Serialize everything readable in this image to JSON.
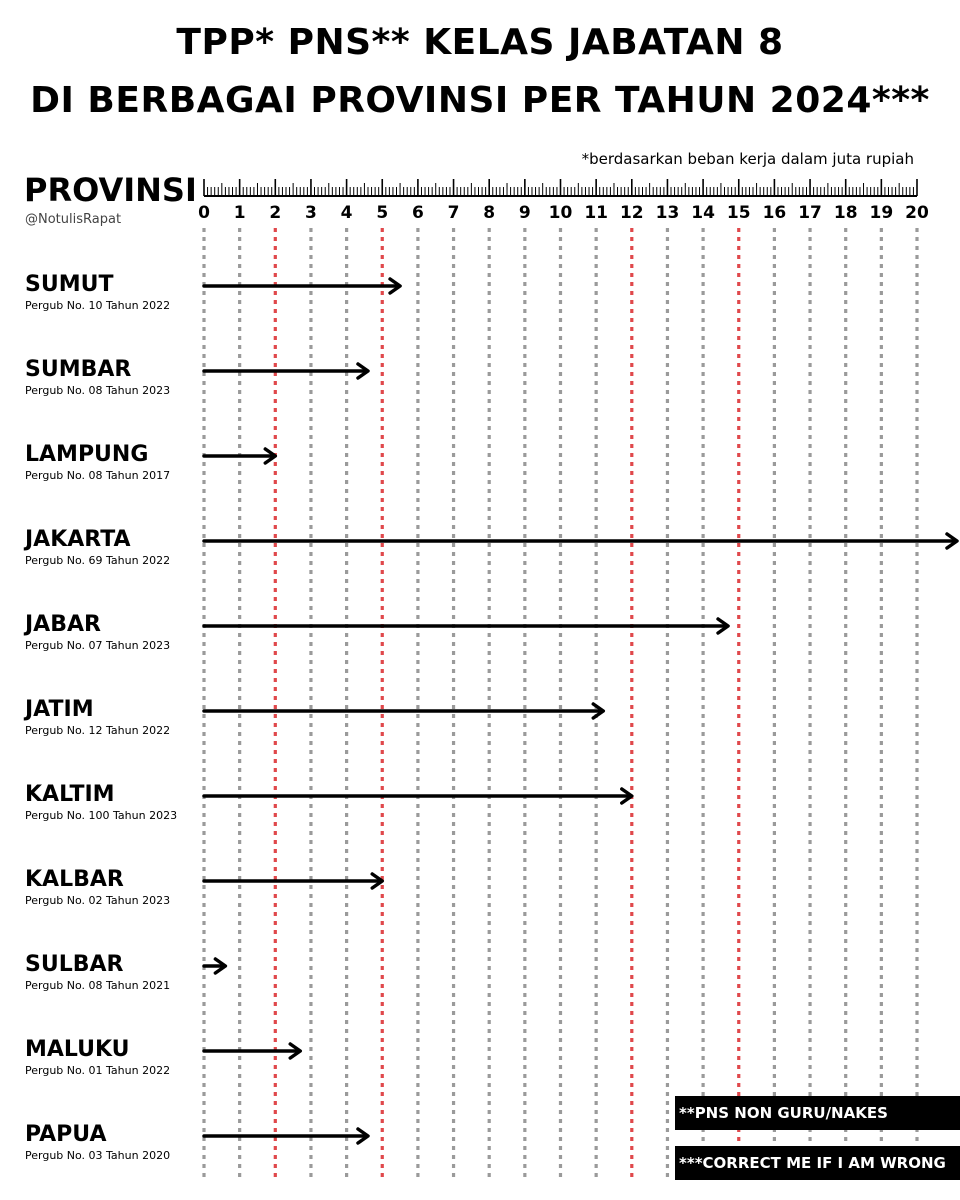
{
  "header": {
    "title_line1": "TPP* PNS** KELAS JABATAN 8",
    "title_line2": "DI BERBAGAI PROVINSI PER TAHUN 2024***",
    "note": "*berdasarkan beban kerja dalam juta rupiah",
    "handle": "@NotulisRapat"
  },
  "footnotes": {
    "note1": "**PNS NON GURU/NAKES",
    "note2": "***CORRECT ME IF I AM WRONG"
  },
  "colors": {
    "grid": "#9a9a9a",
    "highlight_grid": "#e0484b",
    "arrow": "#000000",
    "footnote_bg": "#000000"
  },
  "chart_data": {
    "type": "bar",
    "ylabel": "PROVINSI",
    "xlim": [
      0,
      20
    ],
    "x_ticks": [
      "0",
      "1",
      "2",
      "3",
      "4",
      "5",
      "6",
      "7",
      "8",
      "9",
      "10",
      "11",
      "12",
      "13",
      "14",
      "15",
      "16",
      "17",
      "18",
      "19",
      "20"
    ],
    "highlight_lines": [
      2,
      5,
      12,
      15
    ],
    "categories": [
      {
        "name": "SUMUT",
        "regulation": "Pergub No. 10 Tahun 2022",
        "value": 5.5
      },
      {
        "name": "SUMBAR",
        "regulation": "Pergub No. 08 Tahun 2023",
        "value": 4.6
      },
      {
        "name": "LAMPUNG",
        "regulation": "Pergub No. 08 Tahun 2017",
        "value": 2.0
      },
      {
        "name": "JAKARTA",
        "regulation": "Pergub No. 69 Tahun 2022",
        "value": 21.3
      },
      {
        "name": "JABAR",
        "regulation": "Pergub No. 07 Tahun 2023",
        "value": 14.7
      },
      {
        "name": "JATIM",
        "regulation": "Pergub No. 12 Tahun 2022",
        "value": 11.2
      },
      {
        "name": "KALTIM",
        "regulation": "Pergub No. 100 Tahun 2023",
        "value": 12.0
      },
      {
        "name": "KALBAR",
        "regulation": "Pergub No. 02 Tahun 2023",
        "value": 5.0
      },
      {
        "name": "SULBAR",
        "regulation": "Pergub No. 08 Tahun 2021",
        "value": 0.6
      },
      {
        "name": "MALUKU",
        "regulation": "Pergub No. 01 Tahun 2022",
        "value": 2.7
      },
      {
        "name": "PAPUA",
        "regulation": "Pergub No. 03 Tahun 2020",
        "value": 4.6
      }
    ]
  }
}
